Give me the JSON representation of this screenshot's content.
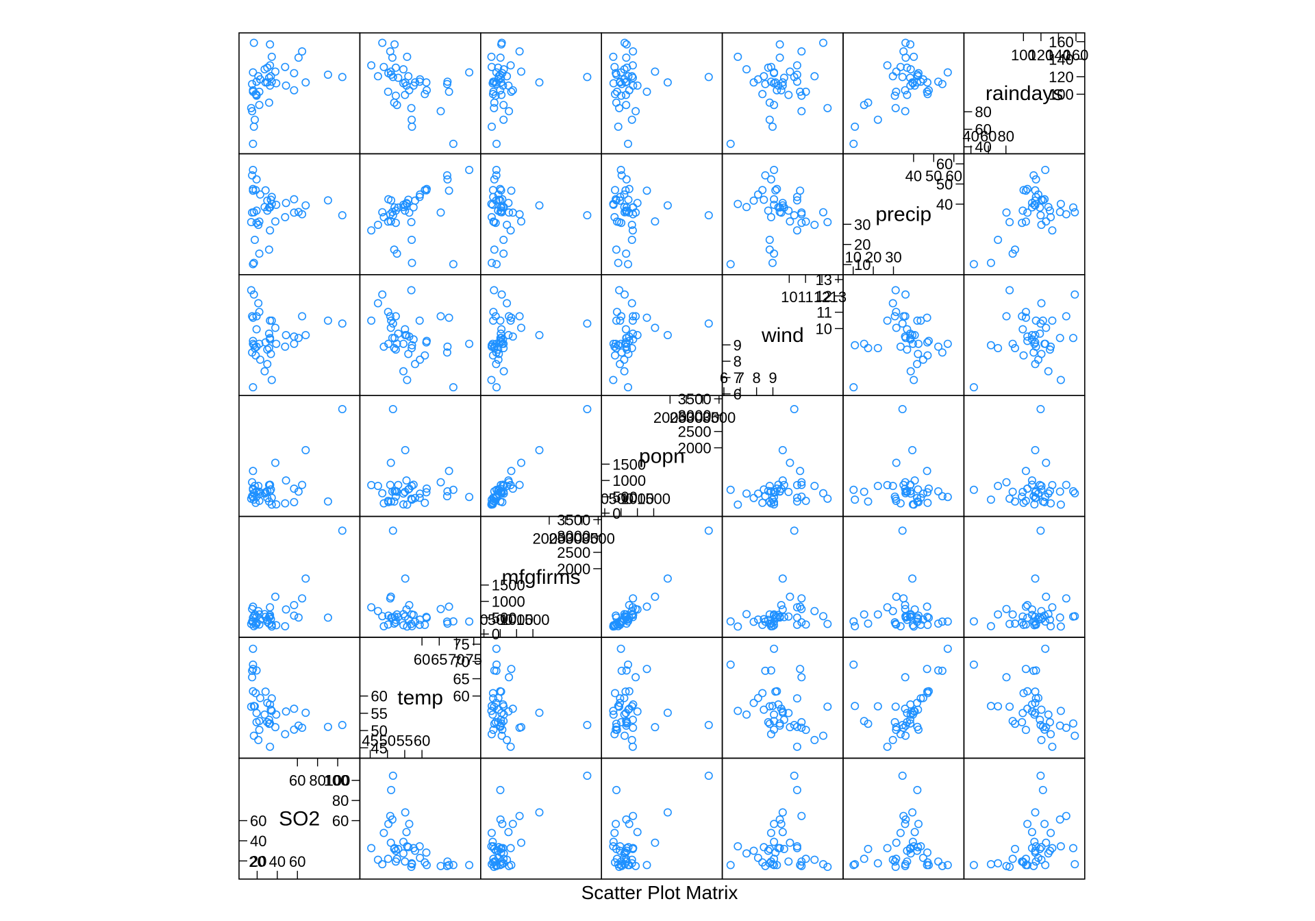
{
  "chart_data": {
    "type": "scatter",
    "subtype": "scatter-plot-matrix",
    "title": "",
    "xlabel": "Scatter Plot Matrix",
    "point_color": "#1E90FF",
    "marker": "open-circle",
    "variables": [
      {
        "name": "SO2",
        "lim": [
          2,
          122
        ],
        "ticks_upper": [
          60,
          80,
          100
        ],
        "ticks_lower": [
          20,
          40,
          60
        ]
      },
      {
        "name": "temp",
        "lim": [
          42,
          77
        ],
        "ticks_upper": [
          60,
          65,
          70,
          75
        ],
        "ticks_lower": [
          45,
          50,
          55,
          60
        ]
      },
      {
        "name": "mfgfirms",
        "lim": [
          -100,
          3600
        ],
        "ticks_upper": [
          2000,
          2500,
          3000,
          3500
        ],
        "ticks_lower": [
          0,
          500,
          1000,
          1500
        ]
      },
      {
        "name": "popn",
        "lim": [
          -100,
          3600
        ],
        "ticks_upper": [
          2000,
          2500,
          3000,
          3500
        ],
        "ticks_lower": [
          0,
          500,
          1000,
          1500
        ]
      },
      {
        "name": "wind",
        "lim": [
          5.9,
          13.3
        ],
        "ticks_upper": [
          10,
          11,
          12,
          13
        ],
        "ticks_lower": [
          6,
          7,
          8,
          9
        ]
      },
      {
        "name": "precip",
        "lim": [
          5,
          65
        ],
        "ticks_upper": [
          40,
          50,
          60
        ],
        "ticks_lower": [
          10,
          20,
          30
        ]
      },
      {
        "name": "raindays",
        "lim": [
          32,
          170
        ],
        "ticks_upper": [
          100,
          120,
          140,
          160
        ],
        "ticks_lower": [
          40,
          60,
          80
        ]
      }
    ],
    "observations": [
      [
        10,
        70.3,
        213,
        582,
        6.0,
        7.05,
        36
      ],
      [
        13,
        61.0,
        91,
        132,
        8.2,
        48.52,
        100
      ],
      [
        12,
        56.7,
        453,
        716,
        8.7,
        20.66,
        67
      ],
      [
        17,
        51.9,
        454,
        515,
        9.0,
        12.95,
        86
      ],
      [
        56,
        49.1,
        412,
        158,
        9.0,
        43.37,
        127
      ],
      [
        36,
        54.0,
        80,
        80,
        9.0,
        40.25,
        114
      ],
      [
        29,
        57.3,
        434,
        757,
        9.3,
        38.89,
        111
      ],
      [
        14,
        68.4,
        136,
        529,
        8.8,
        54.47,
        116
      ],
      [
        10,
        75.5,
        207,
        335,
        9.0,
        59.8,
        128
      ],
      [
        24,
        61.5,
        368,
        497,
        9.1,
        48.34,
        115
      ],
      [
        110,
        50.6,
        3344,
        3369,
        10.4,
        34.44,
        122
      ],
      [
        28,
        52.3,
        361,
        746,
        9.7,
        38.74,
        121
      ],
      [
        17,
        49.0,
        104,
        201,
        11.2,
        30.85,
        103
      ],
      [
        8,
        56.6,
        125,
        277,
        12.7,
        30.58,
        82
      ],
      [
        30,
        55.6,
        291,
        593,
        8.3,
        43.11,
        123
      ],
      [
        9,
        68.3,
        204,
        361,
        8.4,
        56.77,
        113
      ],
      [
        47,
        55.0,
        625,
        905,
        9.6,
        41.31,
        111
      ],
      [
        35,
        49.9,
        1064,
        1513,
        10.1,
        30.96,
        129
      ],
      [
        29,
        43.5,
        699,
        744,
        10.6,
        25.94,
        137
      ],
      [
        14,
        54.5,
        381,
        507,
        10.0,
        37.0,
        99
      ],
      [
        56,
        55.9,
        775,
        622,
        9.5,
        35.89,
        105
      ],
      [
        14,
        51.5,
        181,
        347,
        10.9,
        30.18,
        98
      ],
      [
        11,
        56.8,
        46,
        244,
        8.9,
        7.77,
        58
      ],
      [
        46,
        47.6,
        44,
        116,
        8.8,
        33.36,
        135
      ],
      [
        11,
        47.1,
        391,
        463,
        12.4,
        36.11,
        166
      ],
      [
        23,
        54.0,
        462,
        453,
        7.1,
        39.04,
        132
      ],
      [
        65,
        49.7,
        1007,
        751,
        10.9,
        34.99,
        155
      ],
      [
        26,
        51.5,
        266,
        540,
        8.6,
        37.01,
        134
      ],
      [
        69,
        54.6,
        1692,
        1950,
        9.6,
        39.93,
        115
      ],
      [
        61,
        50.4,
        347,
        520,
        9.4,
        36.22,
        147
      ],
      [
        94,
        50.0,
        343,
        179,
        10.6,
        42.75,
        125
      ],
      [
        10,
        61.6,
        337,
        624,
        9.2,
        49.1,
        105
      ],
      [
        18,
        59.4,
        275,
        448,
        7.9,
        46.0,
        119
      ],
      [
        9,
        66.2,
        641,
        844,
        10.9,
        35.94,
        78
      ],
      [
        10,
        68.9,
        721,
        1233,
        10.8,
        48.19,
        103
      ],
      [
        28,
        51.0,
        137,
        176,
        8.7,
        15.17,
        89
      ],
      [
        31,
        59.3,
        96,
        308,
        10.6,
        44.68,
        116
      ],
      [
        26,
        57.8,
        197,
        299,
        7.6,
        42.59,
        115
      ],
      [
        29,
        51.1,
        379,
        531,
        9.4,
        38.79,
        164
      ],
      [
        31,
        55.2,
        35,
        71,
        6.5,
        40.75,
        148
      ],
      [
        16,
        45.7,
        569,
        717,
        11.8,
        29.07,
        123
      ]
    ]
  }
}
